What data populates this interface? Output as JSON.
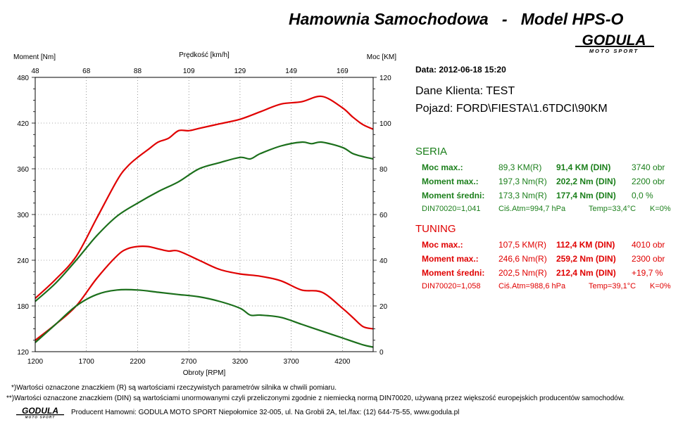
{
  "header": {
    "title": "Hamownia Samochodowa   -   Model HPS-O",
    "logo_text": "GODULA",
    "logo_sub": "MOTO SPORT"
  },
  "chart_data": {
    "type": "line",
    "xlabel": "Obroty [RPM]",
    "top_xlabel": "Prędkość [km/h]",
    "ylabel_left": "Moment [Nm]",
    "ylabel_right": "Moc [KM]",
    "xlim": [
      1200,
      4500
    ],
    "x_ticks": [
      1200,
      1700,
      2200,
      2700,
      3200,
      3700,
      4200
    ],
    "top_ticks": [
      "48",
      "68",
      "88",
      "109",
      "129",
      "149",
      "169"
    ],
    "ylim_left": [
      120,
      480
    ],
    "y_ticks_left": [
      120,
      180,
      240,
      300,
      360,
      420,
      480
    ],
    "ylim_right": [
      0,
      120
    ],
    "y_ticks_right": [
      0,
      20,
      40,
      60,
      80,
      100,
      120
    ],
    "grid": true,
    "series": [
      {
        "role": "torque-tuning",
        "axis": "left",
        "color": "#e00000",
        "x": [
          1200,
          1400,
          1600,
          1800,
          2000,
          2100,
          2200,
          2300,
          2400,
          2500,
          2600,
          2700,
          2800,
          3000,
          3200,
          3400,
          3600,
          3800,
          4000,
          4200,
          4300,
          4400,
          4500
        ],
        "y": [
          190,
          215,
          245,
          295,
          345,
          363,
          375,
          385,
          395,
          400,
          410,
          410,
          413,
          419,
          425,
          435,
          445,
          448,
          455,
          440,
          428,
          418,
          412
        ]
      },
      {
        "role": "torque-seria",
        "axis": "left",
        "color": "#1b6f1b",
        "x": [
          1200,
          1400,
          1600,
          1800,
          2000,
          2200,
          2400,
          2600,
          2800,
          3000,
          3200,
          3300,
          3400,
          3600,
          3800,
          3900,
          4000,
          4200,
          4300,
          4400,
          4500
        ],
        "y": [
          186,
          210,
          240,
          272,
          298,
          315,
          330,
          343,
          360,
          368,
          375,
          373,
          380,
          390,
          395,
          393,
          395,
          388,
          380,
          376,
          373
        ]
      },
      {
        "role": "power-tuning",
        "axis": "right",
        "color": "#e00000",
        "x": [
          1200,
          1400,
          1600,
          1800,
          2000,
          2100,
          2200,
          2300,
          2400,
          2500,
          2600,
          2800,
          3000,
          3200,
          3400,
          3600,
          3800,
          4000,
          4200,
          4300,
          4400,
          4500
        ],
        "y": [
          5,
          12,
          20,
          32,
          42,
          45,
          46,
          46,
          45,
          44,
          44,
          40,
          36,
          34,
          33,
          31,
          27,
          26,
          19,
          15,
          11,
          10
        ]
      },
      {
        "role": "power-seria",
        "axis": "right",
        "color": "#1b6f1b",
        "x": [
          1200,
          1400,
          1600,
          1800,
          2000,
          2200,
          2400,
          2600,
          2800,
          3000,
          3200,
          3300,
          3400,
          3600,
          3800,
          4000,
          4200,
          4400,
          4500
        ],
        "y": [
          4,
          12,
          20,
          25,
          27,
          27,
          26,
          25,
          24,
          22,
          19,
          16,
          16,
          15,
          12,
          9,
          6,
          3,
          2
        ]
      }
    ]
  },
  "info": {
    "date_label": "Data: 2012-06-18  15:20",
    "client": "Dane Klienta: TEST",
    "vehicle": "Pojazd: FORD\\FIESTA\\1.6TDCI\\90KM",
    "seria": {
      "heading": "SERIA",
      "rows": [
        {
          "label": "Moc max.:",
          "r": "89,3 KM(R)",
          "din": "91,4 KM (DIN)",
          "extra": "3740 obr"
        },
        {
          "label": "Moment max.:",
          "r": "197,3 Nm(R)",
          "din": "202,2 Nm (DIN)",
          "extra": "2200 obr"
        },
        {
          "label": "Moment średni:",
          "r": "173,3 Nm(R)",
          "din": "177,4 Nm (DIN)",
          "extra": "0,0 %"
        }
      ],
      "din": "DIN70020=1,041",
      "atm": "Ciś.Atm=994,7 hPa",
      "temp": "Temp=33,4°C",
      "k": "K=0%"
    },
    "tuning": {
      "heading": "TUNING",
      "rows": [
        {
          "label": "Moc max.:",
          "r": "107,5 KM(R)",
          "din": "112,4 KM (DIN)",
          "extra": "4010 obr"
        },
        {
          "label": "Moment max.:",
          "r": "246,6 Nm(R)",
          "din": "259,2 Nm (DIN)",
          "extra": "2300 obr"
        },
        {
          "label": "Moment średni:",
          "r": "202,5 Nm(R)",
          "din": "212,4 Nm (DIN)",
          "extra": "+19,7 %"
        }
      ],
      "din": "DIN70020=1,058",
      "atm": "Ciś.Atm=988,6 hPa",
      "temp": "Temp=39,1°C",
      "k": "K=0%"
    }
  },
  "notes": {
    "note1": "*)Wartości oznaczone znaczkiem (R) są wartościami rzeczywistych parametrów silnika w chwili pomiaru.",
    "note2": "**)Wartości oznaczone znaczkiem (DIN) są wartościami unormowanymi czyli przeliczonymi zgodnie z niemiecką normą DIN70020, używaną przez większość europejskich producentów samochodów.",
    "producer": "Producent Hamowni: GODULA MOTO SPORT Niepołomice 32-005, ul. Na Grobli 2A, tel./fax: (12) 644-75-55, www.godula.pl"
  },
  "colors": {
    "seria": "#1b7f1b",
    "tuning": "#e00000",
    "line_green": "#1b6f1b"
  }
}
